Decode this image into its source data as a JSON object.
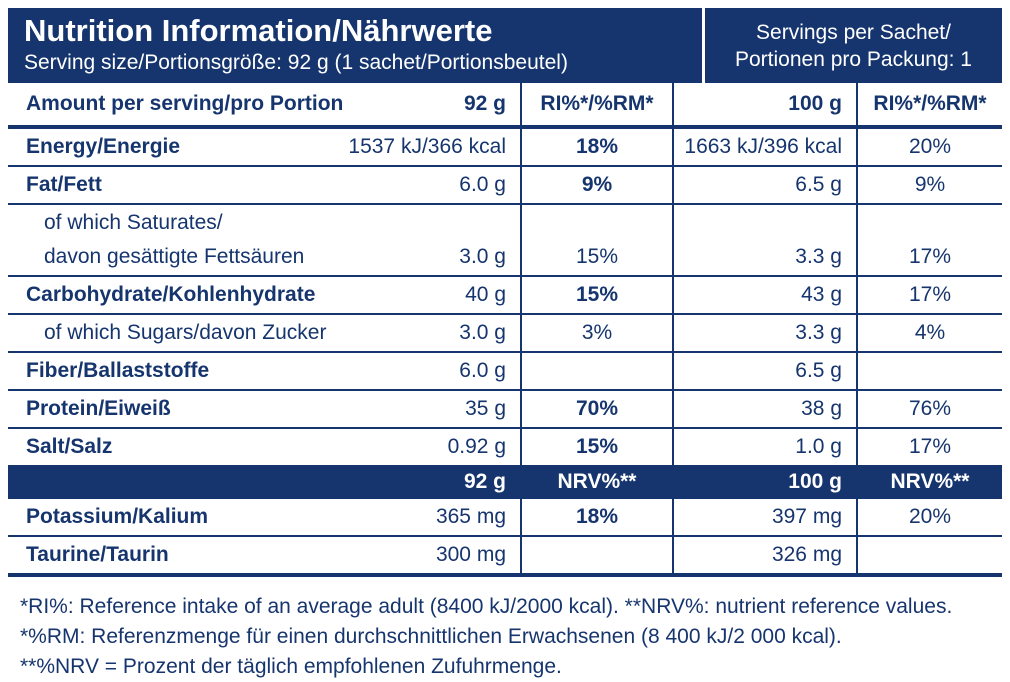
{
  "colors": {
    "navy": "#16356e",
    "white": "#ffffff"
  },
  "header": {
    "title": "Nutrition Information/Nährwerte",
    "subtitle": "Serving size/Portionsgröße: 92 g (1 sachet/Portionsbeutel)",
    "servings_line1": "Servings per Sachet/",
    "servings_line2": "Portionen pro Packung: 1"
  },
  "table": {
    "columns": [
      "Amount per serving/pro Portion",
      "92 g",
      "RI%*/%RM*",
      "100 g",
      "RI%*/%RM*"
    ],
    "rows": [
      {
        "name": "Energy/Energie",
        "bold": true,
        "ri_bold": true,
        "v92": "1537 kJ/366 kcal",
        "ri92": "18%",
        "v100": "1663 kJ/396 kcal",
        "ri100": "20%"
      },
      {
        "name": "Fat/Fett",
        "bold": true,
        "ri_bold": true,
        "v92": "6.0 g",
        "ri92": "9%",
        "v100": "6.5 g",
        "ri100": "9%"
      },
      {
        "name": "of which Saturates/",
        "name_line2": "davon gesättigte Fettsäuren",
        "indent": true,
        "v92": "3.0 g",
        "ri92": "15%",
        "v100": "3.3 g",
        "ri100": "17%"
      },
      {
        "name": "Carbohydrate/Kohlenhydrate",
        "bold": true,
        "ri_bold": true,
        "v92": "40 g",
        "ri92": "15%",
        "v100": "43 g",
        "ri100": "17%"
      },
      {
        "name": "of which Sugars/davon Zucker",
        "indent": true,
        "v92": "3.0 g",
        "ri92": "3%",
        "v100": "3.3 g",
        "ri100": "4%"
      },
      {
        "name": "Fiber/Ballaststoffe",
        "bold": true,
        "v92": "6.0 g",
        "ri92": "",
        "v100": "6.5 g",
        "ri100": ""
      },
      {
        "name": "Protein/Eiweiß",
        "bold": true,
        "ri_bold": true,
        "v92": "35 g",
        "ri92": "70%",
        "v100": "38 g",
        "ri100": "76%"
      },
      {
        "name": "Salt/Salz",
        "bold": true,
        "ri_bold": true,
        "v92": "0.92 g",
        "ri92": "15%",
        "v100": "1.0 g",
        "ri100": "17%"
      }
    ],
    "nrv_header": {
      "label": "",
      "v92": "92 g",
      "ri92": "NRV%**",
      "v100": "100 g",
      "ri100": "NRV%**"
    },
    "nrv_rows": [
      {
        "name": "Potassium/Kalium",
        "bold": true,
        "ri_bold": true,
        "v92": "365 mg",
        "ri92": "18%",
        "v100": "397 mg",
        "ri100": "20%"
      },
      {
        "name": "Taurine/Taurin",
        "bold": true,
        "v92": "300 mg",
        "ri92": "",
        "v100": "326 mg",
        "ri100": ""
      }
    ]
  },
  "footnotes": [
    "*RI%: Reference intake of an average adult (8400 kJ/2000 kcal). **NRV%: nutrient reference values.",
    "*%RM: Referenzmenge für einen durchschnittlichen Erwachsenen (8 400 kJ/2 000 kcal).",
    "**%NRV = Prozent der täglich empfohlenen Zufuhrmenge."
  ]
}
